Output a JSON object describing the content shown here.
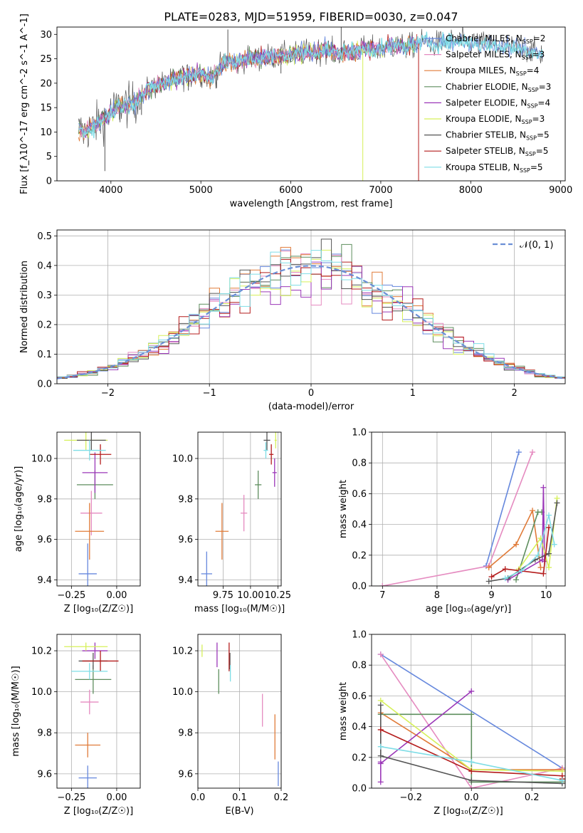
{
  "figure": {
    "title": "PLATE=0283, MJD=51959, FIBERID=0030, z=0.047"
  },
  "colors": {
    "chabrier_miles": "#6688dd",
    "salpeter_miles": "#e58bc0",
    "kroupa_miles": "#e07b39",
    "chabrier_elodie": "#5e8e5e",
    "salpeter_elodie": "#9b37b8",
    "kroupa_elodie": "#d6f05a",
    "chabrier_stelib": "#555555",
    "salpeter_stelib": "#b41c1c",
    "kroupa_stelib": "#7fdde6",
    "normal_curve": "#6b8fd6"
  },
  "chart_data": [
    {
      "id": "spectrum",
      "type": "line",
      "xlabel": "wavelength [Angstrom, rest frame]",
      "ylabel": "Flux [f_λ10^-17 erg cm^-2 s^-1 A^-1]",
      "xlim": [
        3400,
        9050
      ],
      "ylim": [
        0,
        31.5
      ],
      "xticks": [
        4000,
        5000,
        6000,
        7000,
        8000,
        9000
      ],
      "yticks": [
        0,
        5,
        10,
        15,
        20,
        25,
        30
      ],
      "grid": false,
      "legend": "top-right",
      "legend_entries": [
        {
          "model": "Chabrier MILES",
          "nssp": "2",
          "color_key": "chabrier_miles"
        },
        {
          "model": "Salpeter MILES",
          "nssp": "3",
          "color_key": "salpeter_miles"
        },
        {
          "model": "Kroupa MILES",
          "nssp": "4",
          "color_key": "kroupa_miles"
        },
        {
          "model": "Chabrier ELODIE",
          "nssp": "3",
          "color_key": "chabrier_elodie"
        },
        {
          "model": "Salpeter ELODIE",
          "nssp": "4",
          "color_key": "salpeter_elodie"
        },
        {
          "model": "Kroupa ELODIE",
          "nssp": "3",
          "color_key": "kroupa_elodie"
        },
        {
          "model": "Chabrier STELIB",
          "nssp": "5",
          "color_key": "chabrier_stelib"
        },
        {
          "model": "Salpeter STELIB",
          "nssp": "5",
          "color_key": "salpeter_stelib"
        },
        {
          "model": "Kroupa STELIB",
          "nssp": "5",
          "color_key": "kroupa_stelib"
        }
      ],
      "continuum": {
        "x": [
          3640,
          3700,
          3800,
          3900,
          4000,
          4100,
          4200,
          4300,
          4400,
          4500,
          4600,
          4700,
          4800,
          4900,
          5000,
          5100,
          5200,
          5300,
          5400,
          5500,
          5600,
          5700,
          5800,
          5900,
          6000,
          6100,
          6200,
          6300,
          6400,
          6500,
          6600,
          6700,
          6800,
          6900,
          7000,
          7100,
          7200,
          7300,
          7400,
          7500,
          7600,
          7700,
          7800,
          7900,
          8000,
          8100,
          8200,
          8300,
          8400,
          8500,
          8600,
          8700,
          8800
        ],
        "y": [
          10.5,
          10.0,
          11.0,
          12.5,
          14.0,
          15.5,
          15.5,
          16.5,
          18.5,
          19.5,
          20.0,
          20.5,
          21.5,
          21.5,
          22.0,
          21.0,
          23.0,
          24.5,
          24.0,
          25.0,
          25.0,
          25.5,
          25.5,
          25.5,
          26.0,
          26.0,
          26.5,
          26.5,
          27.0,
          26.0,
          26.5,
          26.5,
          27.0,
          27.0,
          27.0,
          27.5,
          27.5,
          27.5,
          28.0,
          28.5,
          28.0,
          28.5,
          28.5,
          28.5,
          28.5,
          28.0,
          28.0,
          27.5,
          27.5,
          27.0,
          27.0,
          26.5,
          26.0
        ]
      },
      "features": [
        {
          "x": 3933,
          "y": 2.0
        },
        {
          "x": 4101,
          "y": 12.0
        },
        {
          "x": 4340,
          "y": 13.5
        },
        {
          "x": 4861,
          "y": 18.5
        },
        {
          "x": 5175,
          "y": 19.0
        },
        {
          "x": 5300,
          "y": 31.0
        },
        {
          "x": 5890,
          "y": 22.0
        },
        {
          "x": 6560,
          "y": 31.5
        },
        {
          "x": 6800,
          "y": 0.0
        },
        {
          "x": 7420,
          "y": 0.0
        }
      ]
    },
    {
      "id": "residuals",
      "type": "line",
      "xlabel": "(data-model)/error",
      "ylabel": "Normed distribution",
      "xlim": [
        -2.5,
        2.5
      ],
      "ylim": [
        0,
        0.52
      ],
      "xticks": [
        -2,
        -1,
        0,
        1,
        2
      ],
      "yticks": [
        0.0,
        0.1,
        0.2,
        0.3,
        0.4,
        0.5
      ],
      "grid": true,
      "legend": "top-right",
      "legend_label": "𝒩(0, 1)"
    },
    {
      "id": "age_vs_z",
      "type": "scatter",
      "xlabel": "Z [log₁₀(Z/Z☉)]",
      "ylabel": "age  [log₁₀(age/yr)]",
      "xlim": [
        -0.33,
        0.13
      ],
      "ylim": [
        9.37,
        10.13
      ],
      "xticks": [
        -0.25,
        0.0
      ],
      "yticks": [
        9.4,
        9.6,
        9.8,
        10.0
      ],
      "grid": true,
      "points": [
        {
          "key": "chabrier_miles",
          "x": -0.16,
          "xerr": 0.05,
          "y": 9.43,
          "yerr": 0.15
        },
        {
          "key": "salpeter_miles",
          "x": -0.14,
          "xerr": 0.06,
          "y": 9.73,
          "yerr": 0.11
        },
        {
          "key": "kroupa_miles",
          "x": -0.15,
          "xerr": 0.08,
          "y": 9.64,
          "yerr": 0.14
        },
        {
          "key": "chabrier_elodie",
          "x": -0.12,
          "xerr": 0.1,
          "y": 9.87,
          "yerr": 0.07
        },
        {
          "key": "salpeter_elodie",
          "x": -0.12,
          "xerr": 0.07,
          "y": 9.93,
          "yerr": 0.1
        },
        {
          "key": "kroupa_elodie",
          "x": -0.17,
          "xerr": 0.12,
          "y": 10.09,
          "yerr": 0.05
        },
        {
          "key": "chabrier_stelib",
          "x": -0.14,
          "xerr": 0.08,
          "y": 10.09,
          "yerr": 0.05
        },
        {
          "key": "salpeter_stelib",
          "x": -0.09,
          "xerr": 0.06,
          "y": 10.02,
          "yerr": 0.05
        },
        {
          "key": "kroupa_stelib",
          "x": -0.15,
          "xerr": 0.09,
          "y": 10.04,
          "yerr": 0.05
        }
      ]
    },
    {
      "id": "age_vs_mass",
      "type": "scatter",
      "xlabel": "mass [log₁₀(M/M☉)]",
      "ylabel": "",
      "xlim": [
        9.52,
        10.28
      ],
      "ylim": [
        9.37,
        10.13
      ],
      "xticks": [
        9.75,
        10.0,
        10.25
      ],
      "yticks": [
        9.4,
        9.6,
        9.8,
        10.0
      ],
      "grid": true,
      "points": [
        {
          "key": "chabrier_miles",
          "x": 9.6,
          "xerr": 0.05,
          "y": 9.43,
          "yerr": 0.11
        },
        {
          "key": "salpeter_miles",
          "x": 9.94,
          "xerr": 0.03,
          "y": 9.73,
          "yerr": 0.09
        },
        {
          "key": "kroupa_miles",
          "x": 9.74,
          "xerr": 0.06,
          "y": 9.64,
          "yerr": 0.14
        },
        {
          "key": "chabrier_elodie",
          "x": 10.07,
          "xerr": 0.03,
          "y": 9.87,
          "yerr": 0.07
        },
        {
          "key": "salpeter_elodie",
          "x": 10.22,
          "xerr": 0.02,
          "y": 9.93,
          "yerr": 0.07
        },
        {
          "key": "kroupa_elodie",
          "x": 10.23,
          "xerr": 0.01,
          "y": 10.09,
          "yerr": 0.04
        },
        {
          "key": "chabrier_stelib",
          "x": 10.15,
          "xerr": 0.03,
          "y": 10.09,
          "yerr": 0.05
        },
        {
          "key": "salpeter_stelib",
          "x": 10.19,
          "xerr": 0.02,
          "y": 10.02,
          "yerr": 0.05
        },
        {
          "key": "kroupa_stelib",
          "x": 10.14,
          "xerr": 0.02,
          "y": 10.04,
          "yerr": 0.04
        }
      ]
    },
    {
      "id": "massweight_vs_age",
      "type": "line",
      "xlabel": "age  [log₁₀(age/yr)]",
      "ylabel": "mass weight",
      "xlim": [
        6.8,
        10.35
      ],
      "ylim": [
        0,
        1.0
      ],
      "xticks": [
        7,
        8,
        9,
        10
      ],
      "yticks": [
        0.0,
        0.2,
        0.4,
        0.6,
        0.8,
        1.0
      ],
      "grid": true,
      "series": [
        {
          "key": "chabrier_miles",
          "x": [
            8.9,
            9.5
          ],
          "y": [
            0.13,
            0.87
          ]
        },
        {
          "key": "salpeter_miles",
          "x": [
            7.0,
            8.95,
            9.75
          ],
          "y": [
            0.0,
            0.13,
            0.87
          ]
        },
        {
          "key": "kroupa_miles",
          "x": [
            8.95,
            9.45,
            9.75,
            9.9
          ],
          "y": [
            0.12,
            0.27,
            0.49,
            0.12
          ]
        },
        {
          "key": "chabrier_elodie",
          "x": [
            9.45,
            9.85,
            9.92
          ],
          "y": [
            0.04,
            0.48,
            0.48
          ]
        },
        {
          "key": "salpeter_elodie",
          "x": [
            9.3,
            9.93,
            9.95,
            9.97
          ],
          "y": [
            0.04,
            0.17,
            0.64,
            0.16
          ]
        },
        {
          "key": "kroupa_elodie",
          "x": [
            9.5,
            9.9,
            10.05,
            10.2
          ],
          "y": [
            0.11,
            0.31,
            0.12,
            0.57
          ]
        },
        {
          "key": "chabrier_stelib",
          "x": [
            8.95,
            9.3,
            9.8,
            10.05,
            10.2
          ],
          "y": [
            0.03,
            0.05,
            0.17,
            0.21,
            0.54
          ]
        },
        {
          "key": "salpeter_stelib",
          "x": [
            9.0,
            9.25,
            9.5,
            9.95,
            10.05
          ],
          "y": [
            0.06,
            0.11,
            0.1,
            0.08,
            0.38
          ]
        },
        {
          "key": "kroupa_stelib",
          "x": [
            9.25,
            9.55,
            9.85,
            10.05,
            10.15
          ],
          "y": [
            0.05,
            0.1,
            0.2,
            0.46,
            0.27
          ]
        }
      ]
    },
    {
      "id": "mass_vs_z",
      "type": "scatter",
      "xlabel": "Z [log₁₀(Z/Z☉)]",
      "ylabel": "mass [log₁₀(M/M☉)]",
      "xlim": [
        -0.33,
        0.13
      ],
      "ylim": [
        9.53,
        10.28
      ],
      "xticks": [
        -0.25,
        0.0
      ],
      "yticks": [
        9.6,
        9.8,
        10.0,
        10.2
      ],
      "grid": true,
      "points": [
        {
          "key": "chabrier_miles",
          "x": -0.16,
          "xerr": 0.05,
          "y": 9.58,
          "yerr": 0.06
        },
        {
          "key": "salpeter_miles",
          "x": -0.15,
          "xerr": 0.05,
          "y": 9.95,
          "yerr": 0.06
        },
        {
          "key": "kroupa_miles",
          "x": -0.16,
          "xerr": 0.07,
          "y": 9.74,
          "yerr": 0.06
        },
        {
          "key": "chabrier_elodie",
          "x": -0.13,
          "xerr": 0.1,
          "y": 10.06,
          "yerr": 0.07
        },
        {
          "key": "salpeter_elodie",
          "x": -0.12,
          "xerr": 0.07,
          "y": 10.2,
          "yerr": 0.04
        },
        {
          "key": "kroupa_elodie",
          "x": -0.17,
          "xerr": 0.12,
          "y": 10.22,
          "yerr": 0.02
        },
        {
          "key": "chabrier_stelib",
          "x": -0.13,
          "xerr": 0.08,
          "y": 10.15,
          "yerr": 0.04
        },
        {
          "key": "salpeter_stelib",
          "x": -0.09,
          "xerr": 0.1,
          "y": 10.15,
          "yerr": 0.05
        },
        {
          "key": "kroupa_stelib",
          "x": -0.15,
          "xerr": 0.1,
          "y": 10.1,
          "yerr": 0.04
        }
      ]
    },
    {
      "id": "mass_vs_ebv",
      "type": "scatter",
      "xlabel": "E(B-V)",
      "ylabel": "",
      "xlim": [
        0,
        0.2
      ],
      "ylim": [
        9.53,
        10.28
      ],
      "xticks": [
        0.0,
        0.1,
        0.2
      ],
      "yticks": [
        9.6,
        9.8,
        10.0,
        10.2
      ],
      "grid": true,
      "points": [
        {
          "key": "chabrier_miles",
          "x": 0.193,
          "y": 9.6,
          "yerr": 0.06
        },
        {
          "key": "salpeter_miles",
          "x": 0.155,
          "y": 9.91,
          "yerr": 0.08
        },
        {
          "key": "kroupa_miles",
          "x": 0.185,
          "y": 9.78,
          "yerr": 0.11
        },
        {
          "key": "chabrier_elodie",
          "x": 0.05,
          "y": 10.05,
          "yerr": 0.06
        },
        {
          "key": "salpeter_elodie",
          "x": 0.046,
          "y": 10.18,
          "yerr": 0.06
        },
        {
          "key": "kroupa_elodie",
          "x": 0.01,
          "y": 10.2,
          "yerr": 0.03
        },
        {
          "key": "chabrier_stelib",
          "x": 0.077,
          "y": 10.15,
          "yerr": 0.04
        },
        {
          "key": "salpeter_stelib",
          "x": 0.075,
          "y": 10.17,
          "yerr": 0.07
        },
        {
          "key": "kroupa_stelib",
          "x": 0.078,
          "y": 10.09,
          "yerr": 0.04
        }
      ]
    },
    {
      "id": "massweight_vs_z",
      "type": "line",
      "xlabel": "Z [log₁₀(Z/Z☉)]",
      "ylabel": "mass weight",
      "xlim": [
        -0.33,
        0.31
      ],
      "ylim": [
        0,
        1.0
      ],
      "xticks": [
        -0.2,
        0.0,
        0.2
      ],
      "yticks": [
        0.0,
        0.2,
        0.4,
        0.6,
        0.8,
        1.0
      ],
      "grid": true,
      "series": [
        {
          "key": "chabrier_miles",
          "x": [
            -0.3,
            0.3
          ],
          "y": [
            0.87,
            0.13
          ]
        },
        {
          "key": "salpeter_miles",
          "x": [
            -0.3,
            0.0,
            0.3
          ],
          "y": [
            0.87,
            0.0,
            0.13
          ]
        },
        {
          "key": "kroupa_miles",
          "x": [
            -0.3,
            0.0,
            0.3
          ],
          "y": [
            0.49,
            0.12,
            0.12
          ]
        },
        {
          "key": "chabrier_elodie",
          "x": [
            -0.3,
            0.0,
            0.0,
            0.3
          ],
          "y": [
            0.48,
            0.48,
            0.04,
            0.04
          ]
        },
        {
          "key": "salpeter_elodie",
          "x": [
            -0.3,
            -0.3,
            -0.3,
            0.0
          ],
          "y": [
            0.04,
            0.17,
            0.16,
            0.63
          ]
        },
        {
          "key": "kroupa_elodie",
          "x": [
            -0.3,
            0.0,
            0.3
          ],
          "y": [
            0.57,
            0.12,
            0.11
          ]
        },
        {
          "key": "chabrier_stelib",
          "x": [
            -0.3,
            -0.3,
            0.0,
            0.3
          ],
          "y": [
            0.54,
            0.21,
            0.05,
            0.03
          ]
        },
        {
          "key": "salpeter_stelib",
          "x": [
            -0.3,
            0.0,
            0.3,
            0.3
          ],
          "y": [
            0.38,
            0.11,
            0.08,
            0.06
          ]
        },
        {
          "key": "kroupa_stelib",
          "x": [
            -0.3,
            0.0,
            0.3
          ],
          "y": [
            0.27,
            0.17,
            0.05
          ]
        }
      ]
    }
  ]
}
